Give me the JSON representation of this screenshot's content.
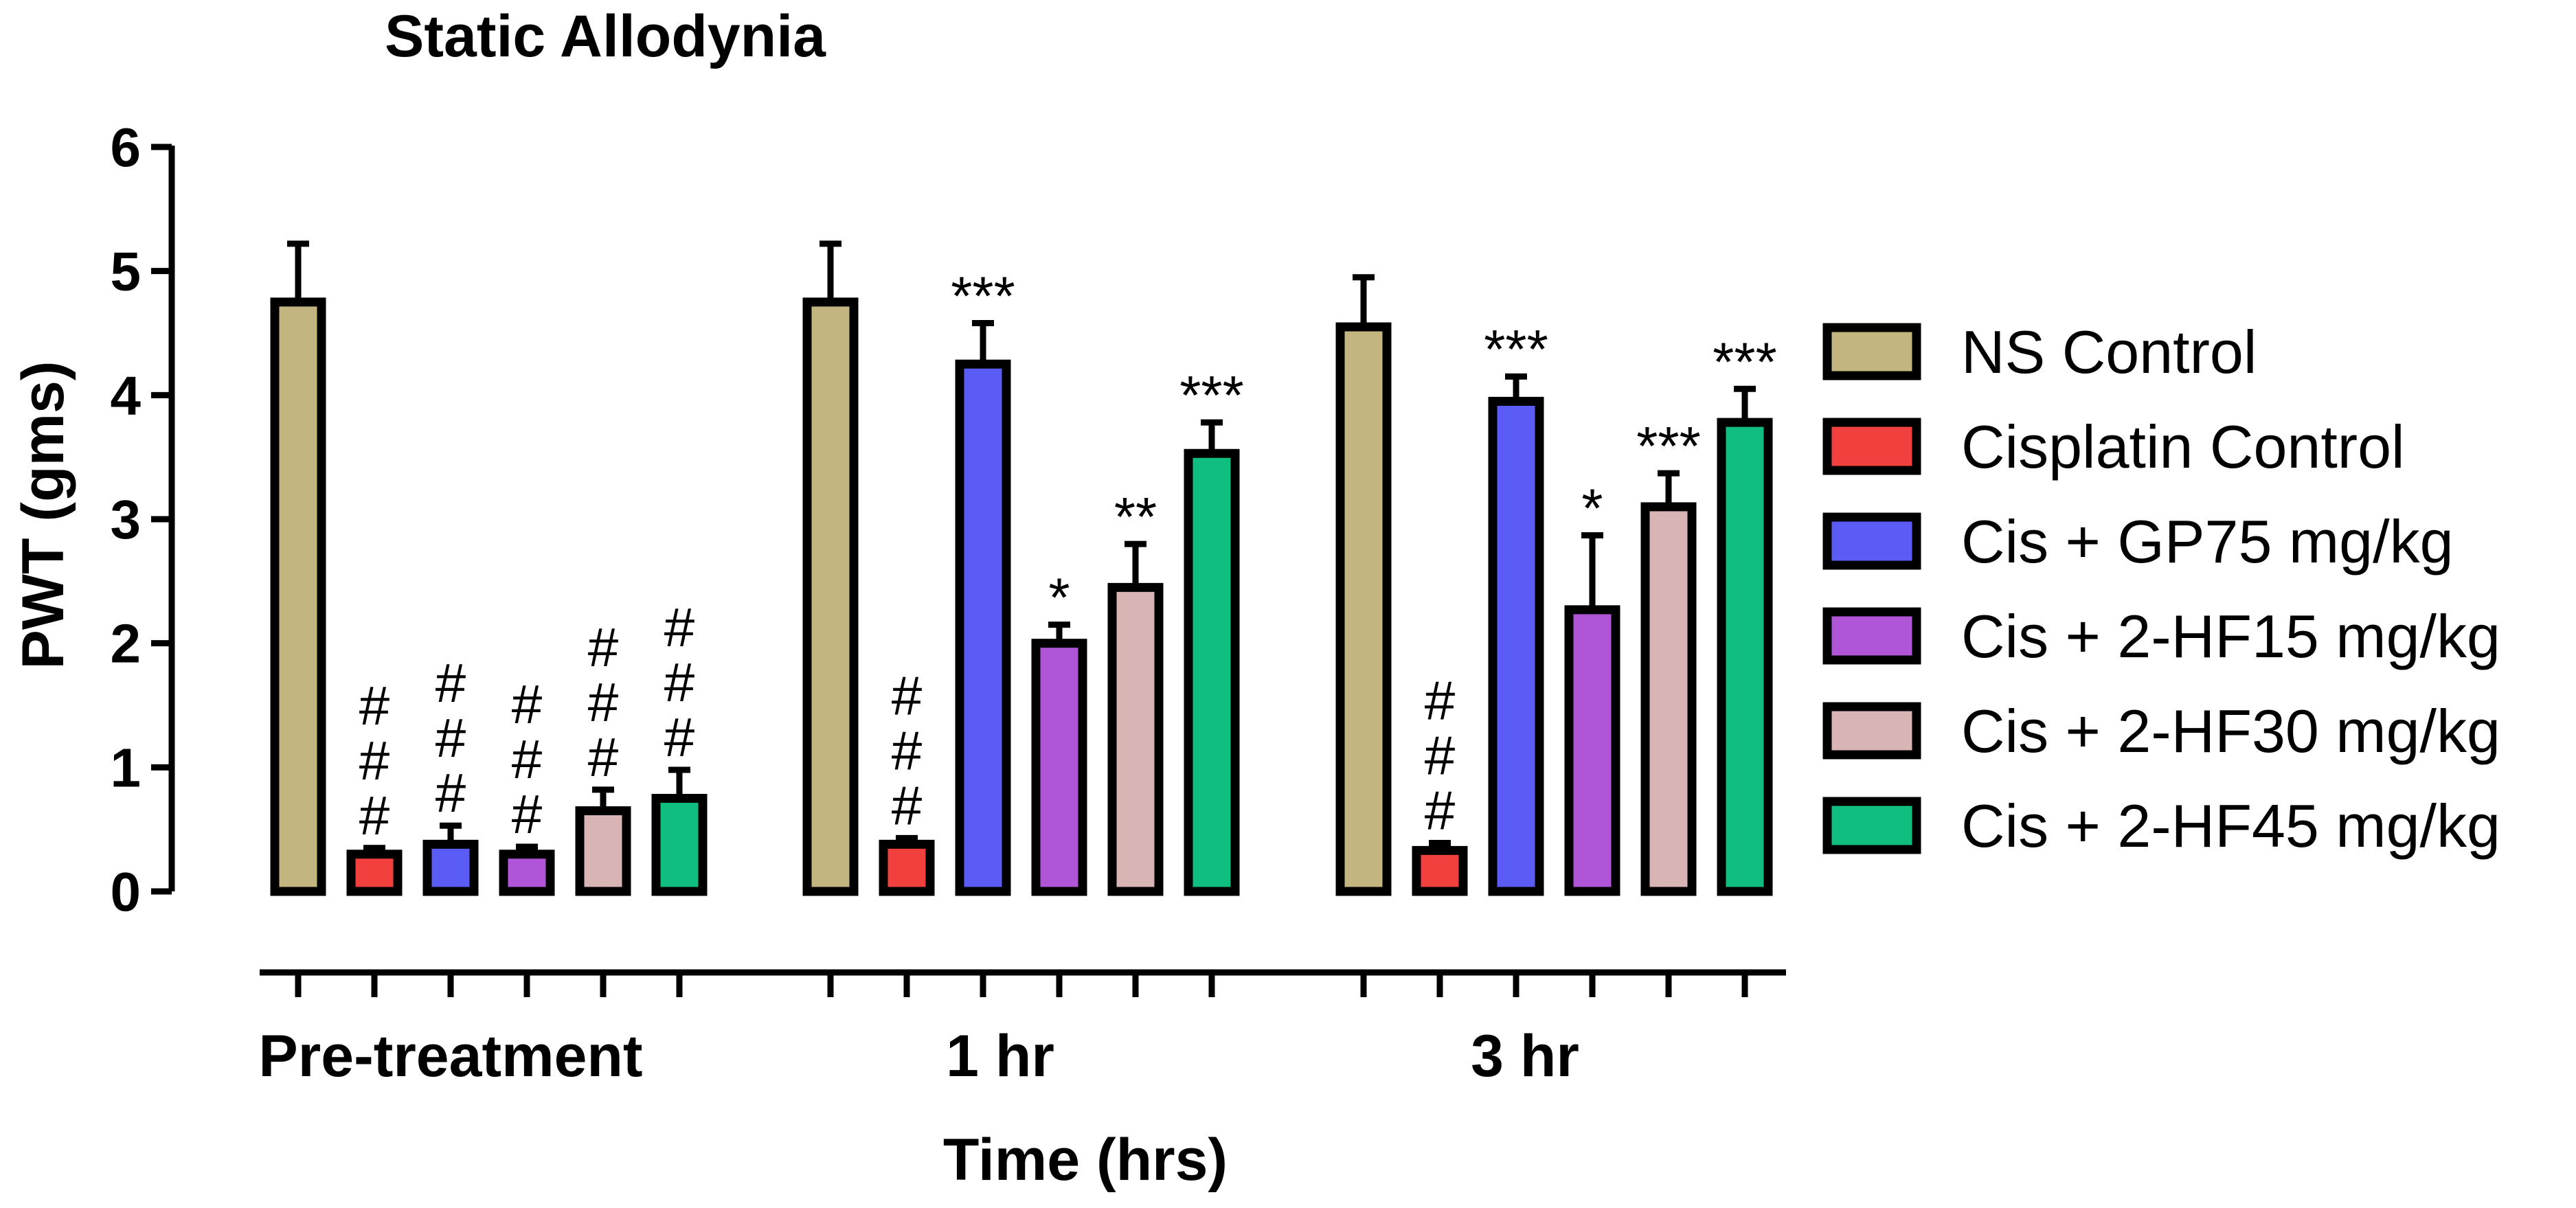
{
  "chart_data": {
    "type": "bar",
    "title": "Static Allodynia",
    "xlabel": "Time (hrs)",
    "ylabel": "PWT (gms)",
    "ylim": [
      0,
      6
    ],
    "yticks": [
      0,
      1,
      2,
      3,
      4,
      5,
      6
    ],
    "categories": [
      "Pre-treatment",
      "1 hr",
      "3 hr"
    ],
    "legend_position": "right",
    "series": [
      {
        "name": "NS Control",
        "color": "#c2b57f",
        "values": [
          4.75,
          4.75,
          4.55
        ],
        "errors": [
          0.47,
          0.47,
          0.4
        ],
        "significance": [
          "",
          "",
          ""
        ]
      },
      {
        "name": "Cisplatin Control",
        "color": "#f2403f",
        "values": [
          0.3,
          0.38,
          0.33
        ],
        "errors": [
          0.05,
          0.05,
          0.06
        ],
        "significance": [
          "#\n#\n#",
          "#\n#\n#",
          "#\n#\n#"
        ]
      },
      {
        "name": "Cis + GP75 mg/kg",
        "color": "#5b5bf5",
        "values": [
          0.38,
          4.25,
          3.95
        ],
        "errors": [
          0.15,
          0.33,
          0.2
        ],
        "significance": [
          "#\n#\n#",
          "***",
          "***"
        ]
      },
      {
        "name": "Cis + 2-HF15 mg/kg",
        "color": "#b054d8",
        "values": [
          0.3,
          2.0,
          2.27
        ],
        "errors": [
          0.06,
          0.15,
          0.6
        ],
        "significance": [
          "#\n#\n#",
          "*",
          "*"
        ]
      },
      {
        "name": "Cis + 2-HF30 mg/kg",
        "color": "#d8b4b4",
        "values": [
          0.65,
          2.45,
          3.1
        ],
        "errors": [
          0.17,
          0.35,
          0.27
        ],
        "significance": [
          "#\n#\n#",
          "**",
          "***"
        ]
      },
      {
        "name": "Cis + 2-HF45 mg/kg",
        "color": "#10bf80",
        "values": [
          0.75,
          3.53,
          3.78
        ],
        "errors": [
          0.23,
          0.25,
          0.27
        ],
        "significance": [
          "#\n#\n#",
          "***",
          "***"
        ]
      }
    ]
  }
}
